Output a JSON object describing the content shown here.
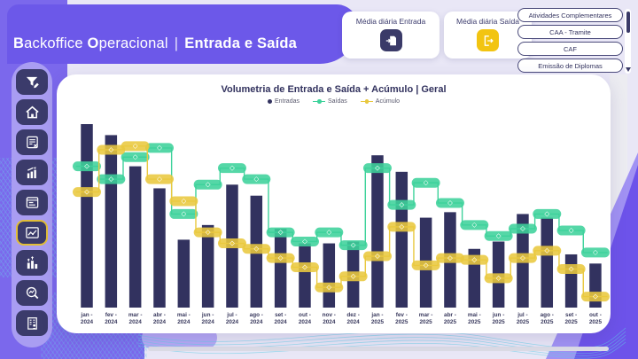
{
  "header": {
    "brand": {
      "b1": "B",
      "t1": "ackoffice",
      "b2": "O",
      "t2": "peracional",
      "sep": "|",
      "section": "Entrada e Saída"
    }
  },
  "kpis": [
    {
      "label": "Média diária Entrada",
      "icon": "file-enter-icon",
      "icon_color": "#3a3a68"
    },
    {
      "label": "Média diária Saída",
      "icon": "door-exit-icon",
      "icon_color": "#f2c411"
    }
  ],
  "nav_buttons": [
    "Atividades Complementares",
    "CAA - Tramite",
    "CAF",
    "Emissão de Diplomas"
  ],
  "sidebar": [
    {
      "name": "filter-edit",
      "active": false
    },
    {
      "name": "home",
      "active": false
    },
    {
      "name": "report-list",
      "active": false
    },
    {
      "name": "growth-chart",
      "active": false
    },
    {
      "name": "form-records",
      "active": false
    },
    {
      "name": "volumetria-line-chart",
      "active": true
    },
    {
      "name": "ranking-people",
      "active": false
    },
    {
      "name": "chart-search",
      "active": false
    },
    {
      "name": "institution-building",
      "active": false
    }
  ],
  "chart_data": {
    "type": "bar",
    "subtype": "combo-bar-with-stepped-lines",
    "title": "Volumetria de Entrada e Saída + Acúmulo | Geral",
    "legend_position": "top",
    "grid": false,
    "ylim": [
      0,
      100
    ],
    "categories": [
      "jan - 2024",
      "fev - 2024",
      "mar - 2024",
      "abr - 2024",
      "mai - 2024",
      "jun - 2024",
      "jul - 2024",
      "ago - 2024",
      "set - 2024",
      "out - 2024",
      "nov - 2024",
      "dez - 2024",
      "jan - 2025",
      "fev - 2025",
      "mar - 2025",
      "abr - 2025",
      "mai - 2025",
      "jun - 2025",
      "jul - 2025",
      "ago - 2025",
      "set - 2025",
      "out - 2025"
    ],
    "series": [
      {
        "name": "Entradas",
        "type": "bar",
        "color": "#32325f",
        "values": [
          100,
          94,
          77,
          65,
          37,
          45,
          67,
          61,
          43,
          35,
          35,
          36,
          83,
          74,
          49,
          52,
          32,
          36,
          51,
          49,
          29,
          24
        ]
      },
      {
        "name": "Saídas",
        "type": "step-line",
        "color": "#3ed29b",
        "values": [
          77,
          70,
          82,
          87,
          51,
          67,
          76,
          70,
          41,
          36,
          41,
          34,
          76,
          56,
          68,
          57,
          45,
          39,
          43,
          51,
          42,
          30
        ]
      },
      {
        "name": "Acúmulo",
        "type": "step-line",
        "color": "#e9c83f",
        "values": [
          63,
          86,
          88,
          70,
          58,
          41,
          35,
          32,
          27,
          22,
          11,
          17,
          28,
          44,
          23,
          27,
          26,
          16,
          27,
          31,
          21,
          6
        ]
      }
    ]
  },
  "colors": {
    "header_purple": "#6c58e9",
    "left_purple": "#7b68ec",
    "rail_purple": "#a99df2",
    "icon_navy": "#3b3b6b",
    "active_border": "#e2be37",
    "bar_navy": "#32325f",
    "saidas_green": "#3ed29b",
    "acumulo_yellow": "#e9c83f",
    "title_navy": "#32325e"
  }
}
